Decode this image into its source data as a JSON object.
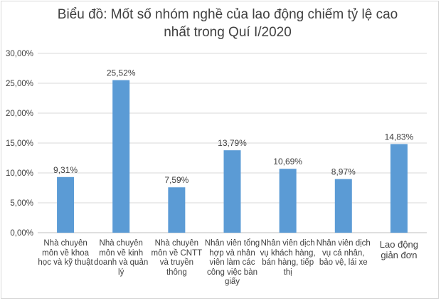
{
  "chart_data": {
    "type": "bar",
    "title_lines": [
      "Biểu đồ: Mốt số nhóm nghề của lao động chiếm tỷ lệ cao",
      "nhất trong Quí I/2020"
    ],
    "categories": [
      "Nhà chuyên môn về khoa học và kỹ thuật",
      "Nhà chuyên môn về kinh doanh và quản lý",
      "Nhà chuyên môn về CNTT và truyền thông",
      "Nhân viên tổng hợp và nhân viên làm các công việc bàn giấy",
      "Nhân viên dịch vụ khách hàng, bán hàng, tiếp thị",
      "Nhân viên dịch vụ cá nhân, bảo vệ, lái xe",
      "Lao động giản đơn"
    ],
    "values": [
      9.31,
      25.52,
      7.59,
      13.79,
      10.69,
      8.97,
      14.83
    ],
    "data_labels": [
      "9,31%",
      "25,52%",
      "7,59%",
      "13,79%",
      "10,69%",
      "8,97%",
      "14,83%"
    ],
    "y_ticks": [
      0,
      5,
      10,
      15,
      20,
      25,
      30
    ],
    "y_tick_labels": [
      "0,00%",
      "5,00%",
      "10,00%",
      "15,00%",
      "20,00%",
      "25,00%",
      "30,00%"
    ],
    "ylim": [
      0,
      30
    ],
    "grid": true,
    "legend": "none",
    "bar_color": "#5b9bd5",
    "grid_color": "#d9d9d9",
    "text_color": "#404040"
  }
}
